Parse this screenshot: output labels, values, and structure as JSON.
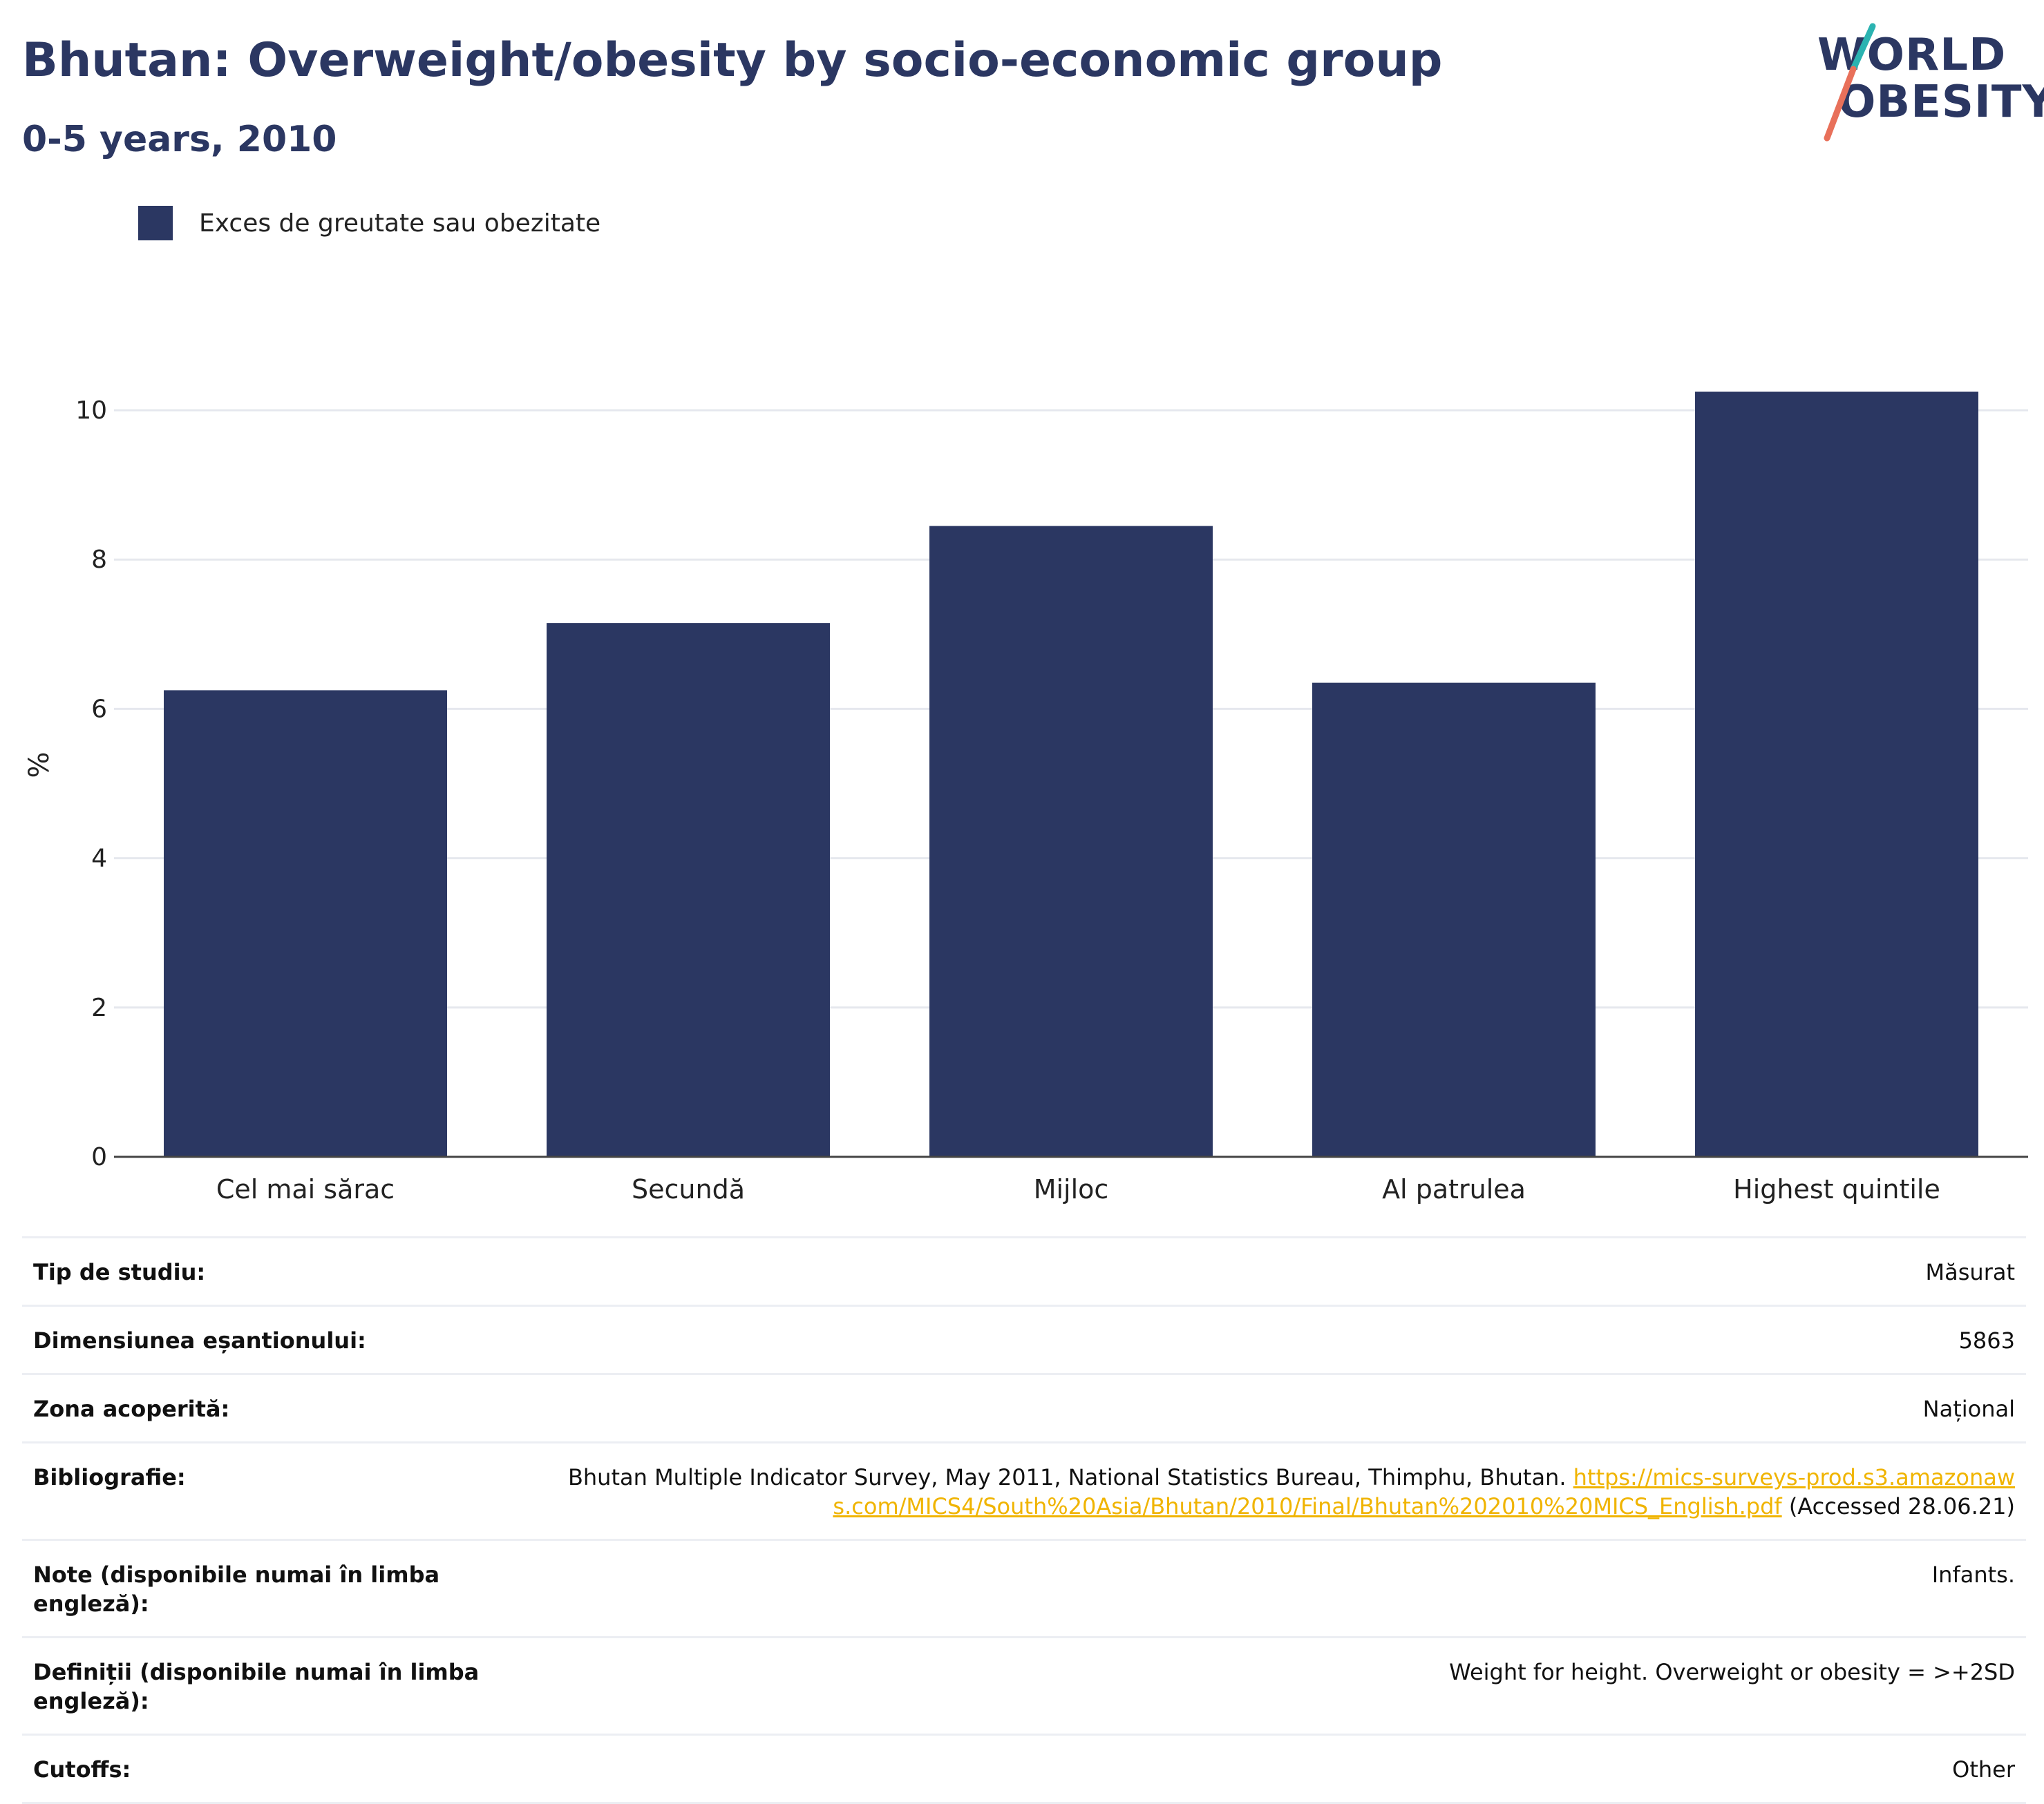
{
  "header": {
    "title": "Bhutan: Overweight/obesity by socio-economic group",
    "subtitle": "0-5 years, 2010"
  },
  "logo": {
    "line1": "WORLD",
    "line2": "OBESITY",
    "accent_teal": "#2bb3b1",
    "accent_coral": "#e8705a"
  },
  "legend": {
    "label": "Exces de greutate sau obezitate",
    "color": "#2b3762"
  },
  "chart_data": {
    "type": "bar",
    "categories": [
      "Cel mai sărac",
      "Secundă",
      "Mijloc",
      "Al patrulea",
      "Highest quintile"
    ],
    "series": [
      {
        "name": "Exces de greutate sau obezitate",
        "values": [
          6.25,
          7.15,
          8.45,
          6.35,
          10.25
        ],
        "color": "#2b3762"
      }
    ],
    "ylabel": "%",
    "ylim": [
      0,
      10.5
    ],
    "yticks": [
      0,
      2,
      4,
      6,
      8,
      10
    ],
    "grid": true
  },
  "meta": [
    {
      "key": "Tip de studiu:",
      "value": "Măsurat"
    },
    {
      "key": "Dimensiunea eșantionului:",
      "value": "5863"
    },
    {
      "key": "Zona acoperită:",
      "value": "Național"
    },
    {
      "key": "Bibliografie:",
      "value": "Bhutan Multiple Indicator Survey, May 2011, National Statistics Bureau, Thimphu, Bhutan.",
      "link": "https://mics-surveys-prod.s3.amazonaws.com/MICS4/South%20Asia/Bhutan/2010/Final/Bhutan%202010%20MICS_English.pdf",
      "suffix": "(Accessed 28.06.21)"
    },
    {
      "key": "Note (disponibile numai în limba engleză):",
      "value": "Infants."
    },
    {
      "key": "Definiții (disponibile numai în limba engleză):",
      "value": "Weight for height. Overweight or obesity = >+2SD"
    },
    {
      "key": "Cutoffs:",
      "value": "Other"
    }
  ]
}
